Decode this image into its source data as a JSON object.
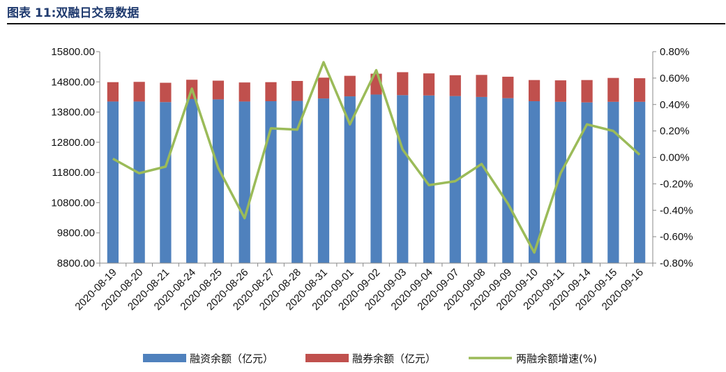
{
  "title": "图表 11:双融日交易数据",
  "chart_data": {
    "type": "bar",
    "categories": [
      "2020-08-19",
      "2020-08-20",
      "2020-08-21",
      "2020-08-24",
      "2020-08-25",
      "2020-08-26",
      "2020-08-27",
      "2020-08-28",
      "2020-08-31",
      "2020-09-01",
      "2020-09-02",
      "2020-09-03",
      "2020-09-04",
      "2020-09-07",
      "2020-09-08",
      "2020-09-09",
      "2020-09-10",
      "2020-09-11",
      "2020-09-14",
      "2020-09-15",
      "2020-09-16"
    ],
    "series": [
      {
        "name": "融资余额（亿元）",
        "kind": "bar-stacked",
        "axis": "left",
        "color": "#4f81bd",
        "values": [
          14150,
          14150,
          14130,
          14230,
          14220,
          14150,
          14160,
          14170,
          14250,
          14320,
          14380,
          14360,
          14350,
          14330,
          14300,
          14260,
          14160,
          14140,
          14120,
          14140,
          14140
        ]
      },
      {
        "name": "融券余额（亿元）",
        "kind": "bar-stacked",
        "axis": "left",
        "color": "#c0504d",
        "values": [
          640,
          650,
          640,
          640,
          620,
          630,
          630,
          660,
          690,
          680,
          690,
          760,
          730,
          690,
          730,
          710,
          700,
          710,
          740,
          790,
          780
        ]
      },
      {
        "name": "两融余额增速(%)",
        "kind": "line",
        "axis": "right",
        "color": "#9bbb59",
        "values": [
          -0.01,
          -0.12,
          -0.07,
          0.52,
          -0.08,
          -0.46,
          0.22,
          0.21,
          0.72,
          0.25,
          0.66,
          0.06,
          -0.21,
          -0.18,
          -0.05,
          -0.35,
          -0.72,
          -0.12,
          0.25,
          0.2,
          0.02
        ]
      }
    ],
    "ylim": [
      8800,
      15800
    ],
    "yticks": [
      "8800.00",
      "9800.00",
      "10800.00",
      "11800.00",
      "12800.00",
      "13800.00",
      "14800.00",
      "15800.00"
    ],
    "y2lim": [
      -0.8,
      0.8
    ],
    "y2ticks": [
      "-0.80%",
      "-0.60%",
      "-0.40%",
      "-0.20%",
      "0.00%",
      "0.20%",
      "0.40%",
      "0.60%",
      "0.80%"
    ],
    "grid": false,
    "legend": "bottom"
  }
}
